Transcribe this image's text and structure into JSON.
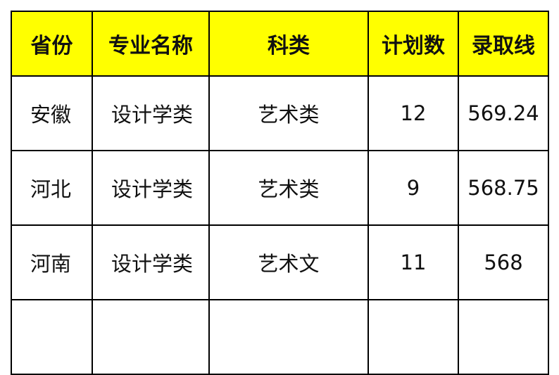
{
  "table": {
    "headers": [
      "省份",
      "专业名称",
      "科类",
      "计划数",
      "录取线"
    ],
    "rows": [
      [
        "安徽",
        "设计学类",
        "艺术类",
        "12",
        "569.24"
      ],
      [
        "河北",
        "设计学类",
        "艺术类",
        "9",
        "568.75"
      ],
      [
        "河南",
        "设计学类",
        "艺术文",
        "11",
        "568"
      ]
    ],
    "header_bg": "#ffff00"
  }
}
